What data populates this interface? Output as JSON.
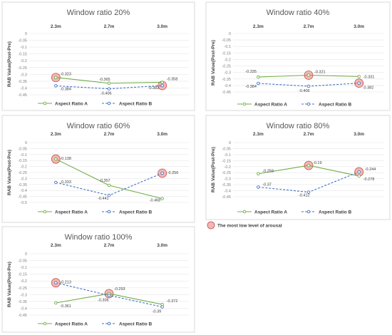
{
  "chart_data": [
    {
      "type": "line",
      "title": "Window ratio 20%",
      "ylabel": "RAB Value(Post-Pre)",
      "categories": [
        "2.3m",
        "2.7m",
        "3.0m"
      ],
      "ylim": [
        -0.45,
        0
      ],
      "yticks": [
        "0",
        "-0.05",
        "-0.1",
        "-0.15",
        "-0.2",
        "-0.25",
        "-0.3",
        "-0.35",
        "-0.4",
        "-0.45"
      ],
      "series": [
        {
          "name": "Aspect Ratio A",
          "values": [
            -0.323,
            -0.365,
            -0.358
          ],
          "labels": [
            "-0.323",
            "-0.365",
            "-0.358"
          ],
          "color": "#70ad47",
          "dashed": false
        },
        {
          "name": "Aspect Ratio B",
          "values": [
            -0.384,
            -0.406,
            -0.382
          ],
          "labels": [
            "-0.384",
            "-0.406",
            "-0.382"
          ],
          "color": "#4472c4",
          "dashed": true
        }
      ],
      "highlights": [
        {
          "series": 0,
          "index": 0
        },
        {
          "series": 1,
          "index": 2
        }
      ],
      "legend": "bottom"
    },
    {
      "type": "line",
      "title": "Window ratio 40%",
      "ylabel": "RAB Value(Post-Pre)",
      "categories": [
        "2.3m",
        "2.7m",
        "3.0m"
      ],
      "ylim": [
        -0.45,
        0
      ],
      "yticks": [
        "0",
        "-0.05",
        "-0.1",
        "-0.15",
        "-0.2",
        "-0.25",
        "-0.3",
        "-0.35",
        "-0.4",
        "-0.45"
      ],
      "series": [
        {
          "name": "Aspect Ratio A",
          "values": [
            -0.335,
            -0.321,
            -0.331
          ],
          "labels": [
            "-0.335",
            "-0.321",
            "-0.331"
          ],
          "color": "#70ad47",
          "dashed": false
        },
        {
          "name": "Aspect Ratio B",
          "values": [
            -0.384,
            -0.406,
            -0.382
          ],
          "labels": [
            "-0.384",
            "-0.406",
            "-0.382"
          ],
          "color": "#4472c4",
          "dashed": true
        }
      ],
      "highlights": [
        {
          "series": 0,
          "index": 1
        },
        {
          "series": 1,
          "index": 2
        }
      ],
      "legend": "bottom"
    },
    {
      "type": "line",
      "title": "Window ratio 60%",
      "ylabel": "RAB Value(Post-Pre)",
      "categories": [
        "2.3m",
        "2.7m",
        "3.0m"
      ],
      "ylim": [
        -0.5,
        0
      ],
      "yticks": [
        "0",
        "-0.05",
        "-0.1",
        "-0.15",
        "-0.2",
        "-0.25",
        "-0.3",
        "-0.35",
        "-0.4",
        "-0.45",
        "-0.5"
      ],
      "series": [
        {
          "name": "Aspect Ratio A",
          "values": [
            -0.138,
            -0.357,
            -0.468
          ],
          "labels": [
            "-0.138",
            "-0.357",
            "-0.468"
          ],
          "color": "#70ad47",
          "dashed": false
        },
        {
          "name": "Aspect Ratio B",
          "values": [
            -0.333,
            -0.441,
            -0.256
          ],
          "labels": [
            "-0.333",
            "-0.441",
            "-0.256"
          ],
          "color": "#4472c4",
          "dashed": true
        }
      ],
      "highlights": [
        {
          "series": 0,
          "index": 0
        },
        {
          "series": 1,
          "index": 2
        }
      ],
      "legend": "bottom"
    },
    {
      "type": "line",
      "title": "Window ratio 80%",
      "ylabel": "RAB Value(Post-Pre)",
      "categories": [
        "2.3m",
        "2.7m",
        "3.0m"
      ],
      "ylim": [
        -0.45,
        0
      ],
      "yticks": [
        "0",
        "-0.05",
        "-0.1",
        "-0.15",
        "-0.2",
        "-0.25",
        "-0.3",
        "-0.35",
        "-0.4",
        "-0.45"
      ],
      "series": [
        {
          "name": "Aspect Ratio A",
          "values": [
            -0.259,
            -0.19,
            -0.278
          ],
          "labels": [
            "-0.259",
            "-0.19",
            "-0.278"
          ],
          "color": "#70ad47",
          "dashed": false
        },
        {
          "name": "Aspect Ratio B",
          "values": [
            -0.37,
            -0.412,
            -0.244
          ],
          "labels": [
            "-0.37",
            "-0.412",
            "-0.244"
          ],
          "color": "#4472c4",
          "dashed": true
        }
      ],
      "highlights": [
        {
          "series": 0,
          "index": 1
        },
        {
          "series": 1,
          "index": 2
        }
      ],
      "legend": "bottom"
    },
    {
      "type": "line",
      "title": "Window ratio 100%",
      "ylabel": "RAB Value(Post-Pre)",
      "categories": [
        "2.3m",
        "2.7m",
        "3.0m"
      ],
      "ylim": [
        -0.45,
        0
      ],
      "yticks": [
        "0",
        "-0.05",
        "-0.1",
        "-0.15",
        "-0.2",
        "-0.25",
        "-0.3",
        "-0.35",
        "-0.4",
        "-0.45"
      ],
      "series": [
        {
          "name": "Aspect Ratio A",
          "values": [
            -0.361,
            -0.293,
            -0.372
          ],
          "labels": [
            "-0.361",
            "-0.293",
            "-0.372"
          ],
          "color": "#70ad47",
          "dashed": false
        },
        {
          "name": "Aspect Ratio B",
          "values": [
            -0.213,
            -0.306,
            -0.39
          ],
          "labels": [
            "-0.213",
            "-0.306",
            "-0.39"
          ],
          "color": "#4472c4",
          "dashed": true
        }
      ],
      "highlights": [
        {
          "series": 1,
          "index": 0
        },
        {
          "series": 0,
          "index": 1
        }
      ],
      "legend": "bottom"
    }
  ],
  "legend_note": {
    "label": "The most low level of arousal",
    "color": "#f4b6b3"
  }
}
